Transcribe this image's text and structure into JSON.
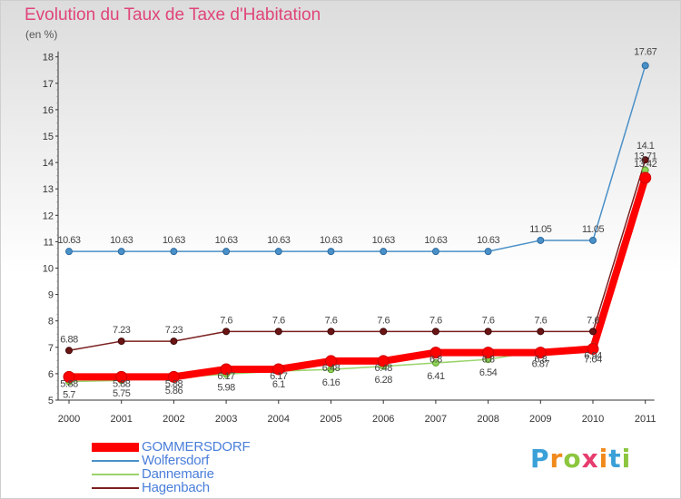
{
  "title": "Evolution du Taux de Taxe d'Habitation",
  "unit": "(en %)",
  "logo": "Proxiti",
  "colors": {
    "accent_title": "#e0447a",
    "legend_text": "#4a7fd9",
    "gommersdorf": "#ff0000",
    "wolfersdorf": "#4a90c8",
    "dannemarie": "#9ad36a",
    "hagenbach": "#7b2020"
  },
  "chart_data": {
    "type": "line",
    "title": "Evolution du Taux de Taxe d'Habitation",
    "ylabel": "(en %)",
    "xlabel": "",
    "ylim": [
      5,
      18
    ],
    "yticks": [
      5,
      6,
      7,
      8,
      9,
      10,
      11,
      12,
      13,
      14,
      15,
      16,
      17,
      18
    ],
    "grid": false,
    "legend_position": "bottom-left",
    "categories": [
      "2000",
      "2001",
      "2002",
      "2003",
      "2004",
      "2005",
      "2006",
      "2007",
      "2008",
      "2009",
      "2010",
      "2011"
    ],
    "series": [
      {
        "name": "GOMMERSDORF",
        "color": "#ff0000",
        "values": [
          5.88,
          5.88,
          5.88,
          6.17,
          6.17,
          6.48,
          6.48,
          6.8,
          6.8,
          6.8,
          6.94,
          13.42
        ],
        "labels": [
          "5.88",
          "5.88",
          "5.88",
          "6.17",
          "6.17",
          "6.48",
          "6.48",
          "6.8",
          "6.8",
          "6.8",
          "6.94",
          "13.42"
        ]
      },
      {
        "name": "Wolfersdorf",
        "color": "#4a90c8",
        "values": [
          10.63,
          10.63,
          10.63,
          10.63,
          10.63,
          10.63,
          10.63,
          10.63,
          10.63,
          11.05,
          11.05,
          17.67
        ],
        "labels": [
          "10.63",
          "10.63",
          "10.63",
          "10.63",
          "10.63",
          "10.63",
          "10.63",
          "10.63",
          "10.63",
          "11.05",
          "11.05",
          "17.67"
        ]
      },
      {
        "name": "Dannemarie",
        "color": "#9ad36a",
        "values": [
          5.7,
          5.75,
          5.86,
          5.98,
          6.1,
          6.16,
          6.28,
          6.41,
          6.54,
          6.87,
          7.04,
          13.71
        ],
        "labels": [
          "5.7",
          "5.75",
          "5.86",
          "5.98",
          "6.1",
          "6.16",
          "6.28",
          "6.41",
          "6.54",
          "6.87",
          "7.04",
          "13.71"
        ]
      },
      {
        "name": "Hagenbach",
        "color": "#7b2020",
        "values": [
          6.88,
          7.23,
          7.23,
          7.6,
          7.6,
          7.6,
          7.6,
          7.6,
          7.6,
          7.6,
          7.6,
          14.1
        ],
        "labels": [
          "6.88",
          "7.23",
          "7.23",
          "7.6",
          "7.6",
          "7.6",
          "7.6",
          "7.6",
          "7.6",
          "7.6",
          "7.6",
          "14.1"
        ]
      }
    ]
  }
}
